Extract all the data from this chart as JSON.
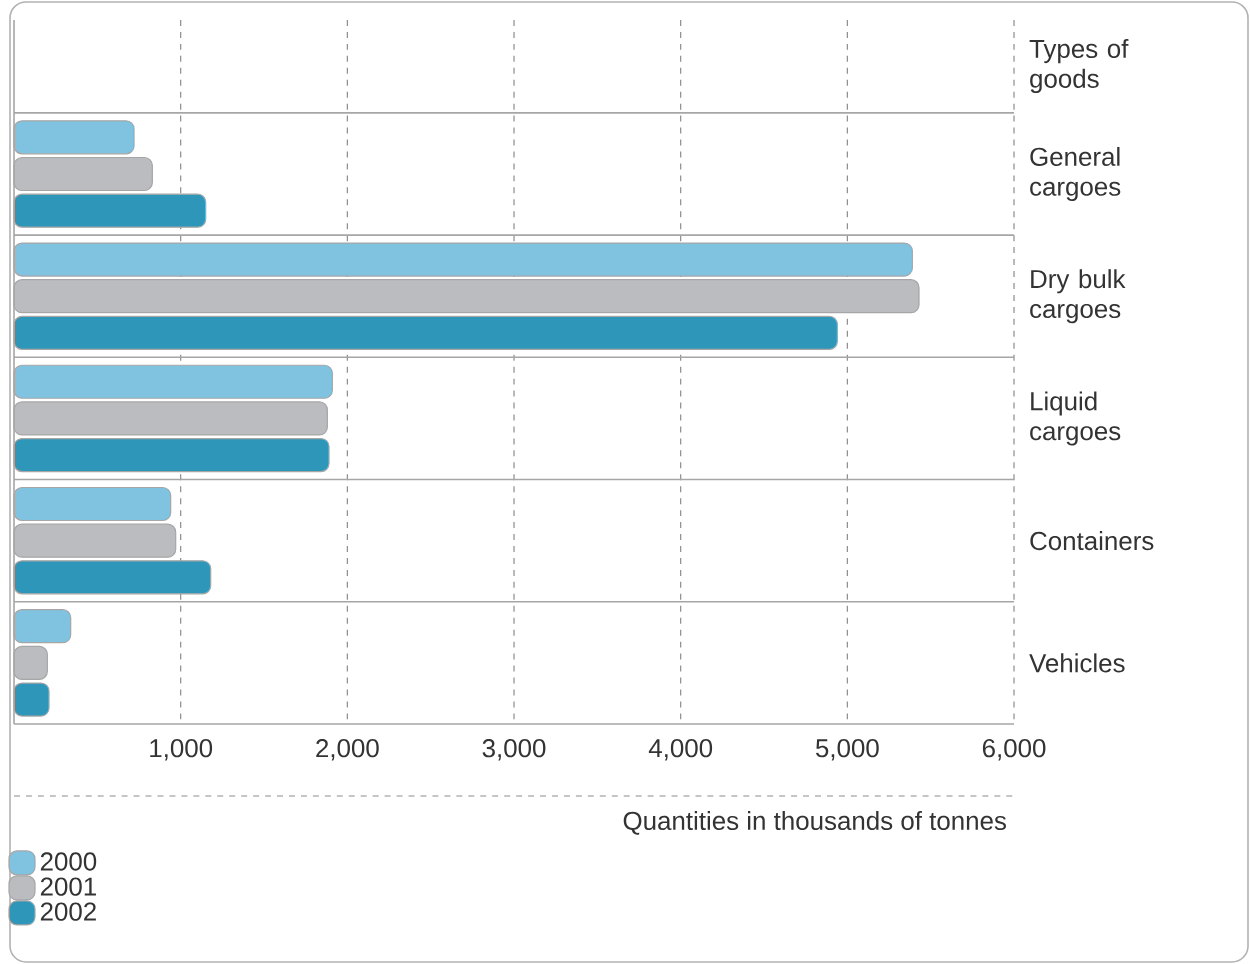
{
  "chart_data": {
    "type": "bar",
    "orientation": "horizontal",
    "ylabel": "Types of goods",
    "xlabel": "Quantities in thousands of tonnes",
    "categories": [
      "General cargoes",
      "Dry bulk cargoes",
      "Liquid cargoes",
      "Containers",
      "Vehicles"
    ],
    "series": [
      {
        "name": "2000",
        "color": "#7fc3e0",
        "values": [
          720,
          5390,
          1910,
          940,
          340
        ]
      },
      {
        "name": "2001",
        "color": "#bbbcc0",
        "values": [
          830,
          5430,
          1880,
          970,
          200
        ]
      },
      {
        "name": "2002",
        "color": "#2e96b8",
        "values": [
          1150,
          4940,
          1890,
          1180,
          210
        ]
      }
    ],
    "xlim": [
      0,
      6000
    ],
    "xticks": [
      {
        "value": 1000,
        "label": "1,000"
      },
      {
        "value": 2000,
        "label": "2,000"
      },
      {
        "value": 3000,
        "label": "3,000"
      },
      {
        "value": 4000,
        "label": "4,000"
      },
      {
        "value": 5000,
        "label": "5,000"
      },
      {
        "value": 6000,
        "label": "6,000"
      }
    ],
    "grid": "x",
    "legend": "bottom left"
  }
}
